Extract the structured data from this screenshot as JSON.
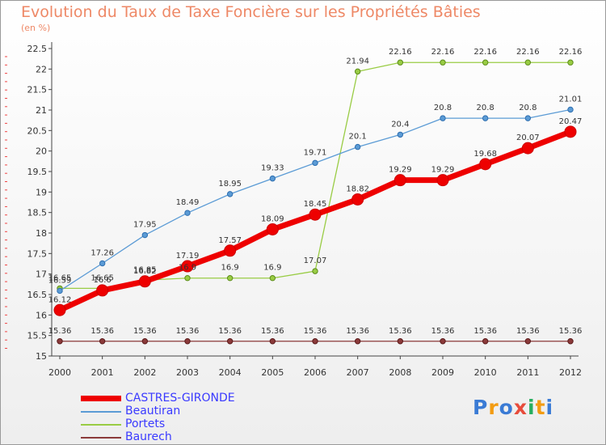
{
  "title": "Evolution du Taux de Taxe Foncière sur les Propriétés Bâties",
  "subtitle": "(en %)",
  "logo": {
    "text": "Proxiti",
    "letter_colors": [
      "#3a7bd5",
      "#f39c12",
      "#3a7bd5",
      "#e74c3c",
      "#27ae60",
      "#f39c12",
      "#3a7bd5"
    ]
  },
  "chart_data": {
    "type": "line",
    "x": [
      "2000",
      "2001",
      "2002",
      "2003",
      "2004",
      "2005",
      "2006",
      "2007",
      "2008",
      "2009",
      "2010",
      "2011",
      "2012"
    ],
    "ylim": [
      15,
      22.5
    ],
    "yticks": [
      "15",
      "15.5",
      "16",
      "16.5",
      "17",
      "17.5",
      "18",
      "18.5",
      "19",
      "19.5",
      "20",
      "20.5",
      "21",
      "21.5",
      "22",
      "22.5"
    ],
    "grid": false,
    "legend_position": "bottom-left",
    "series": [
      {
        "name": "CASTRES-GIRONDE",
        "color": "#ee0000",
        "values": [
          16.12,
          16.6,
          16.82,
          17.19,
          17.57,
          18.09,
          18.45,
          18.82,
          19.29,
          19.29,
          19.68,
          20.07,
          20.47
        ],
        "labels": [
          "16.12",
          "16.6",
          "16.82",
          "17.19",
          "17.57",
          "18.09",
          "18.45",
          "18.82",
          "19.29",
          "19.29",
          "19.68",
          "20.07",
          "20.47"
        ]
      },
      {
        "name": "Beautiran",
        "color": "#5b9bd5",
        "values": [
          16.59,
          17.26,
          17.95,
          18.49,
          18.95,
          19.33,
          19.71,
          20.1,
          20.4,
          20.8,
          20.8,
          20.8,
          21.01
        ],
        "labels": [
          "16.59",
          "17.26",
          "17.95",
          "18.49",
          "18.95",
          "19.33",
          "19.71",
          "20.1",
          "20.4",
          "20.8",
          "20.8",
          "20.8",
          "21.01"
        ]
      },
      {
        "name": "Portets",
        "color": "#99cc44",
        "values": [
          16.65,
          16.65,
          16.85,
          16.9,
          16.9,
          16.9,
          17.07,
          21.94,
          22.16,
          22.16,
          22.16,
          22.16,
          22.16
        ],
        "labels": [
          "16.65",
          "16.65",
          "16.85",
          "16.9",
          "16.9",
          "16.9",
          "17.07",
          "21.94",
          "22.16",
          "22.16",
          "22.16",
          "22.16",
          "22.16"
        ]
      },
      {
        "name": "Baurech",
        "color": "#8b3a3a",
        "values": [
          15.36,
          15.36,
          15.36,
          15.36,
          15.36,
          15.36,
          15.36,
          15.36,
          15.36,
          15.36,
          15.36,
          15.36,
          15.36
        ],
        "labels": [
          "15.36",
          "15.36",
          "15.36",
          "15.36",
          "15.36",
          "15.36",
          "15.36",
          "15.36",
          "15.36",
          "15.36",
          "15.36",
          "15.36",
          "15.36"
        ]
      }
    ]
  }
}
